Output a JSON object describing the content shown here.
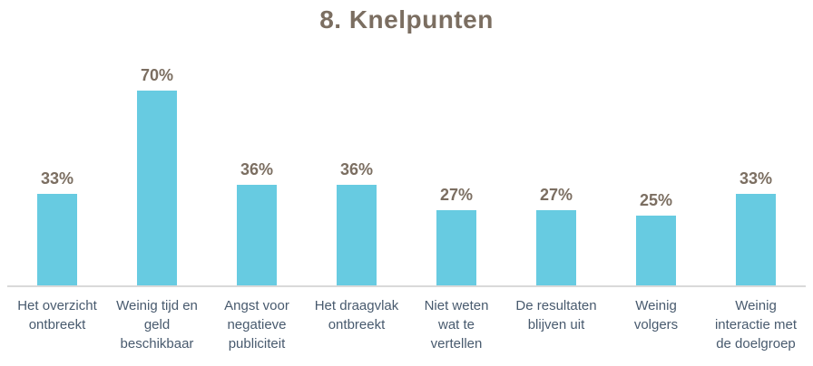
{
  "title": "8. Knelpunten",
  "colors": {
    "bar": "#67CBE1",
    "axis_line": "#D9D9D9",
    "title_text": "#7B6E61",
    "value_label_text": "#7B6E61",
    "category_text": "#485A6E",
    "background": "#FFFFFF"
  },
  "chart_data": {
    "type": "bar",
    "title": "8. Knelpunten",
    "categories": [
      "Het overzicht ontbreekt",
      "Weinig tijd en geld beschikbaar",
      "Angst voor negatieve publiciteit",
      "Het draagvlak ontbreekt",
      "Niet weten wat te vertellen",
      "De resultaten blijven uit",
      "Weinig volgers",
      "Weinig interactie met de doelgroep"
    ],
    "categories_lines": [
      [
        "Het overzicht",
        "ontbreekt"
      ],
      [
        "Weinig tijd en",
        "geld",
        "beschikbaar"
      ],
      [
        "Angst voor",
        "negatieve",
        "publiciteit"
      ],
      [
        "Het draagvlak",
        "ontbreekt"
      ],
      [
        "Niet weten",
        "wat te",
        "vertellen"
      ],
      [
        "De resultaten",
        "blijven uit"
      ],
      [
        "Weinig",
        "volgers"
      ],
      [
        "Weinig",
        "interactie met",
        "de doelgroep"
      ]
    ],
    "values": [
      33,
      70,
      36,
      36,
      27,
      27,
      25,
      33
    ],
    "value_labels": [
      "33%",
      "70%",
      "36%",
      "36%",
      "27%",
      "27%",
      "25%",
      "33%"
    ],
    "xlabel": "",
    "ylabel": "",
    "ylim": [
      0,
      80
    ],
    "grid": false,
    "legend": false,
    "data_labels_position": "above-bar",
    "y_axis_visible": false,
    "x_axis_line_visible": true
  }
}
